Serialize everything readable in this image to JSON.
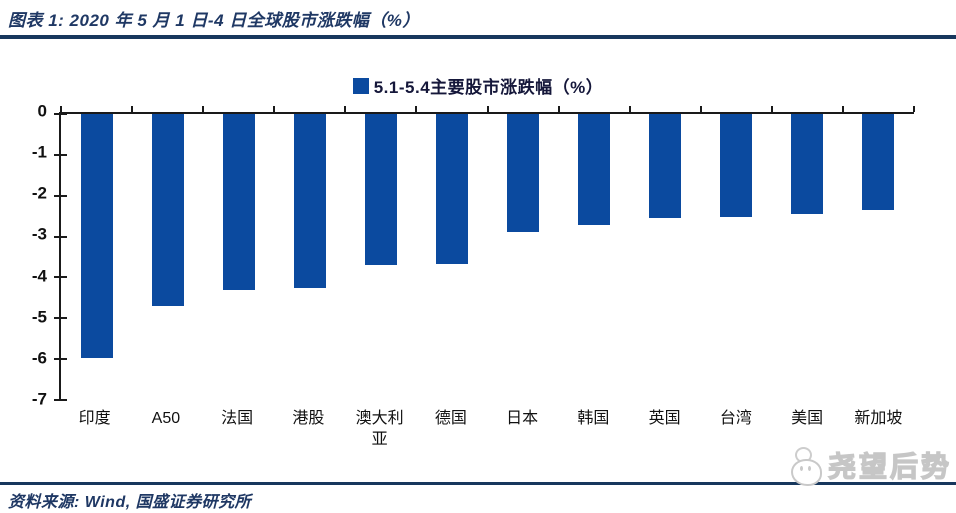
{
  "header": {
    "title": "图表 1: 2020 年 5 月 1 日-4 日全球股市涨跌幅（%）"
  },
  "chart_data": {
    "type": "bar",
    "legend_label": "5.1-5.4主要股市涨跌幅（%）",
    "legend_position": "top-center",
    "categories": [
      "印度",
      "A50",
      "法国",
      "港股",
      "澳大利亚",
      "德国",
      "日本",
      "韩国",
      "英国",
      "台湾",
      "美国",
      "新加坡"
    ],
    "values": [
      -5.98,
      -4.7,
      -4.3,
      -4.25,
      -3.7,
      -3.67,
      -2.9,
      -2.72,
      -2.55,
      -2.52,
      -2.44,
      -2.36
    ],
    "ylim": [
      -7,
      0
    ],
    "yticks": [
      "0",
      "-1",
      "-2",
      "-3",
      "-4",
      "-5",
      "-6",
      "-7"
    ],
    "grid": false,
    "bar_color": "#0B4A9F",
    "xlabel": "",
    "ylabel": ""
  },
  "footer": {
    "source": "资料来源: Wind, 国盛证券研究所"
  },
  "watermark": {
    "text": "尧望后势"
  },
  "colors": {
    "accent_navy": "#17375D",
    "title_text": "#1F3864",
    "bar_blue": "#0B4A9F",
    "axis_black": "#1A1A1A",
    "watermark_gray": "#C6C6C6"
  }
}
